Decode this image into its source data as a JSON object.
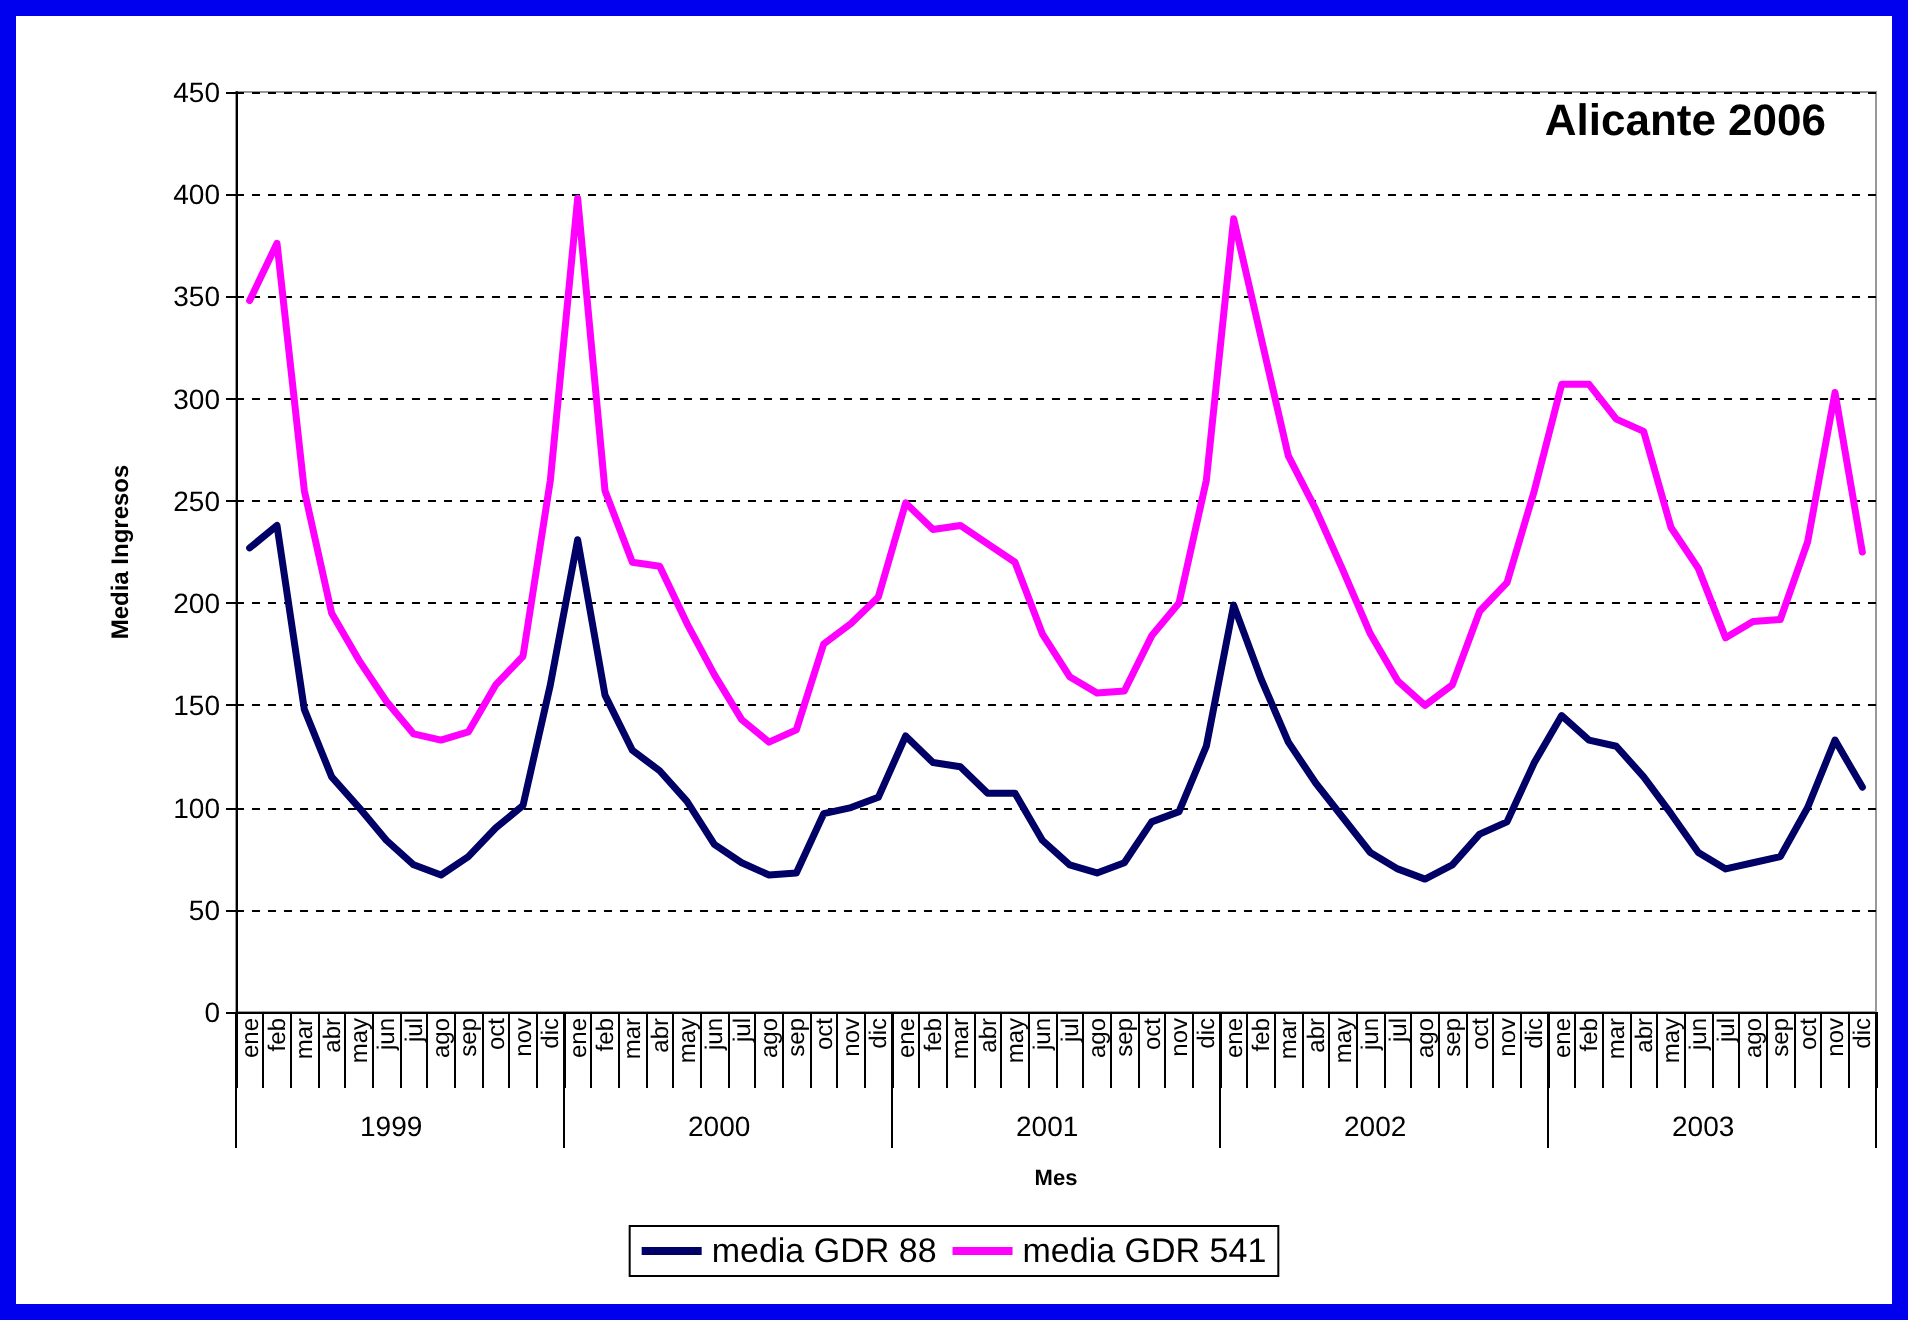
{
  "chart_data": {
    "type": "line",
    "title": "Alicante 2006",
    "xlabel": "Mes",
    "ylabel": "Media Ingresos",
    "categories": [
      "ene",
      "feb",
      "mar",
      "abr",
      "may",
      "jun",
      "jul",
      "ago",
      "sep",
      "oct",
      "nov",
      "dic",
      "ene",
      "feb",
      "mar",
      "abr",
      "may",
      "jun",
      "jul",
      "ago",
      "sep",
      "oct",
      "nov",
      "dic",
      "ene",
      "feb",
      "mar",
      "abr",
      "may",
      "jun",
      "jul",
      "ago",
      "sep",
      "oct",
      "nov",
      "dic",
      "ene",
      "feb",
      "mar",
      "abr",
      "may",
      "jun",
      "jul",
      "ago",
      "sep",
      "oct",
      "nov",
      "dic",
      "ene",
      "feb",
      "mar",
      "abr",
      "may",
      "jun",
      "jul",
      "ago",
      "sep",
      "oct",
      "nov",
      "dic"
    ],
    "annotations": [
      "1999",
      "2000",
      "2001",
      "2002",
      "2003"
    ],
    "series": [
      {
        "name": "media GDR 88",
        "color": "#000066",
        "values": [
          227,
          238,
          148,
          115,
          100,
          84,
          72,
          67,
          76,
          90,
          101,
          160,
          231,
          155,
          128,
          118,
          103,
          82,
          73,
          67,
          68,
          97,
          100,
          105,
          135,
          122,
          120,
          107,
          107,
          84,
          72,
          68,
          73,
          93,
          98,
          130,
          199,
          163,
          132,
          112,
          95,
          78,
          70,
          65,
          72,
          87,
          93,
          122,
          145,
          133,
          130,
          115,
          97,
          78,
          70,
          73,
          76,
          100,
          133,
          110
        ]
      },
      {
        "name": "media GDR 541",
        "color": "#ff00ff",
        "values": [
          348,
          376,
          255,
          195,
          172,
          152,
          136,
          133,
          137,
          160,
          174,
          260,
          398,
          255,
          220,
          218,
          190,
          165,
          143,
          132,
          138,
          180,
          190,
          203,
          249,
          236,
          238,
          229,
          220,
          185,
          164,
          156,
          157,
          184,
          200,
          260,
          388,
          330,
          272,
          246,
          216,
          185,
          162,
          150,
          160,
          196,
          210,
          255,
          307,
          307,
          290,
          284,
          237,
          217,
          183,
          191,
          192,
          230,
          303,
          225
        ]
      }
    ],
    "ylim": [
      0,
      450
    ],
    "yticks": [
      0,
      50,
      100,
      150,
      200,
      250,
      300,
      350,
      400,
      450
    ],
    "grid": "y",
    "legend": "bottom",
    "marker": "none",
    "line_style": "solid"
  }
}
